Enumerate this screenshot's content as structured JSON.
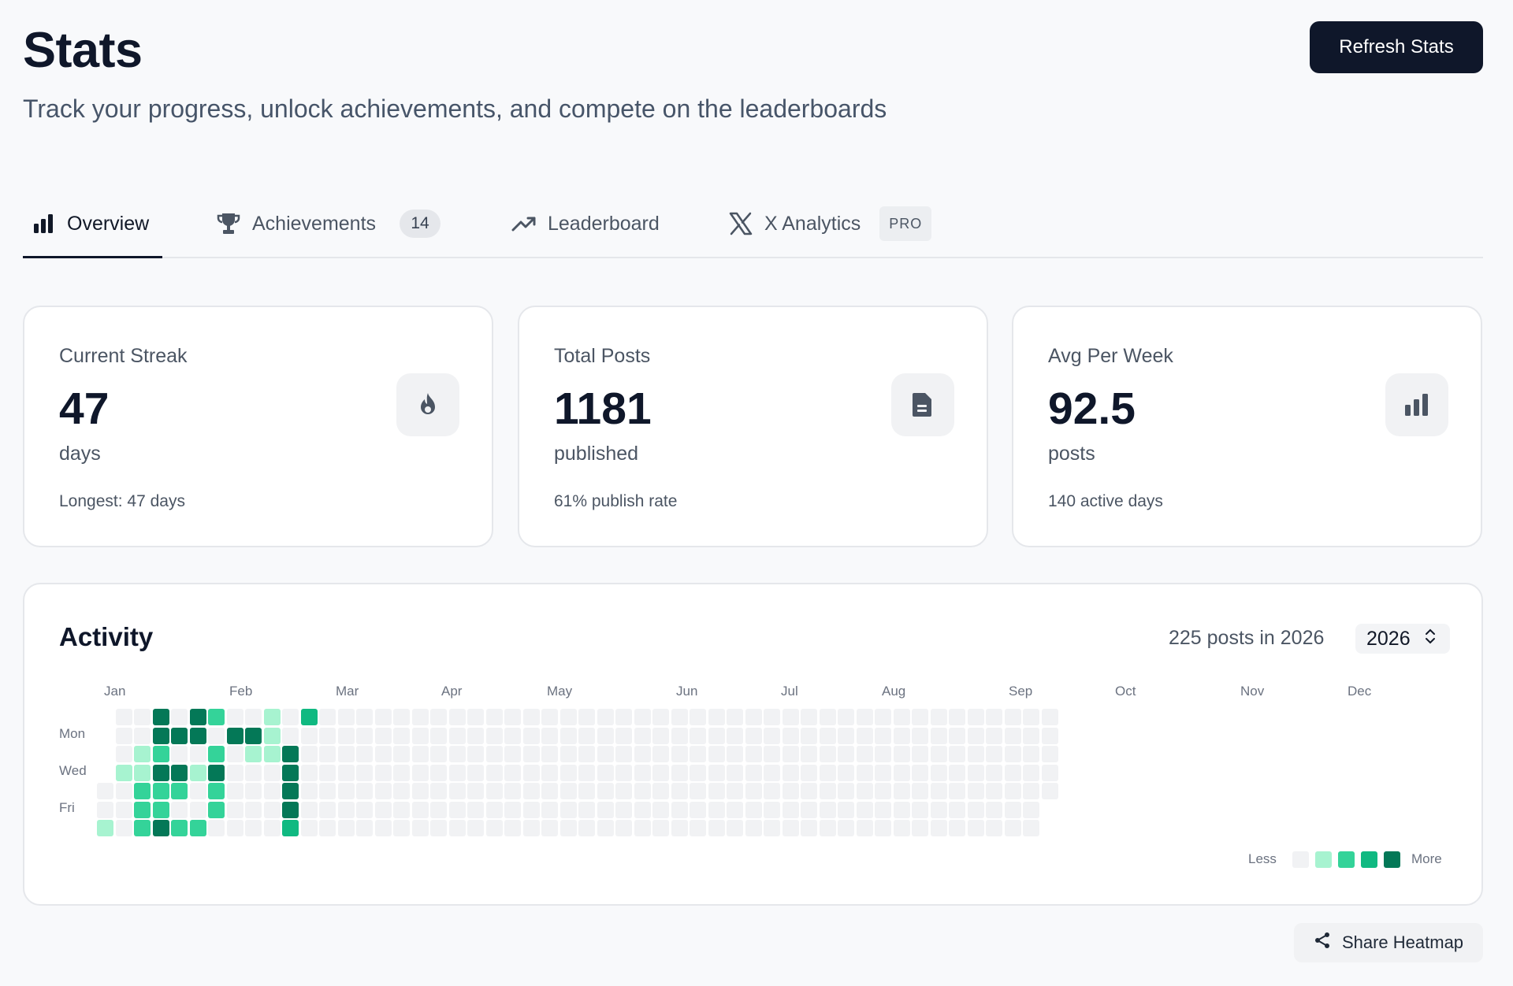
{
  "header": {
    "title": "Stats",
    "subtitle": "Track your progress, unlock achievements, and compete on the leaderboards",
    "refresh_label": "Refresh Stats"
  },
  "tabs": [
    {
      "label": "Overview",
      "icon": "bar-chart-icon",
      "active": true
    },
    {
      "label": "Achievements",
      "icon": "trophy-icon",
      "badge": "14"
    },
    {
      "label": "Leaderboard",
      "icon": "trending-up-icon"
    },
    {
      "label": "X Analytics",
      "icon": "x-logo-icon",
      "tag": "PRO"
    }
  ],
  "stats": [
    {
      "label": "Current Streak",
      "value": "47",
      "unit": "days",
      "footnote": "Longest: 47 days",
      "icon": "flame-icon"
    },
    {
      "label": "Total Posts",
      "value": "1181",
      "unit": "published",
      "footnote": "61% publish rate",
      "icon": "document-icon"
    },
    {
      "label": "Avg Per Week",
      "value": "92.5",
      "unit": "posts",
      "footnote": "140 active days",
      "icon": "bar-chart-icon"
    }
  ],
  "activity": {
    "title": "Activity",
    "summary": "225 posts in 2026",
    "year": "2026",
    "months": [
      "Jan",
      "Feb",
      "Mar",
      "Apr",
      "May",
      "Jun",
      "Jul",
      "Aug",
      "Sep",
      "Oct",
      "Nov",
      "Dec"
    ],
    "day_labels": [
      "Mon",
      "Wed",
      "Fri"
    ],
    "legend_less": "Less",
    "legend_more": "More",
    "levels": [
      "#f1f2f4",
      "#a7f3d0",
      "#34d399",
      "#10b981",
      "#047857"
    ],
    "weeks": [
      [
        null,
        null,
        null,
        null,
        0,
        0,
        1
      ],
      [
        0,
        0,
        0,
        1,
        0,
        0,
        0
      ],
      [
        0,
        0,
        1,
        1,
        2,
        2,
        2
      ],
      [
        4,
        4,
        2,
        4,
        2,
        2,
        4
      ],
      [
        0,
        4,
        0,
        4,
        2,
        0,
        2
      ],
      [
        4,
        4,
        0,
        1,
        0,
        0,
        2
      ],
      [
        2,
        0,
        2,
        4,
        2,
        2,
        0
      ],
      [
        0,
        4,
        0,
        0,
        0,
        0,
        0
      ],
      [
        0,
        4,
        1,
        0,
        0,
        0,
        0
      ],
      [
        1,
        1,
        1,
        0,
        0,
        0,
        0
      ],
      [
        0,
        0,
        4,
        4,
        4,
        4,
        3
      ],
      [
        3,
        0,
        0,
        0,
        0,
        0,
        0
      ],
      [
        0,
        0,
        0,
        0,
        0,
        0,
        0
      ],
      [
        0,
        0,
        0,
        0,
        0,
        0,
        0
      ],
      [
        0,
        0,
        0,
        0,
        0,
        0,
        0
      ],
      [
        0,
        0,
        0,
        0,
        0,
        0,
        0
      ],
      [
        0,
        0,
        0,
        0,
        0,
        0,
        0
      ],
      [
        0,
        0,
        0,
        0,
        0,
        0,
        0
      ],
      [
        0,
        0,
        0,
        0,
        0,
        0,
        0
      ],
      [
        0,
        0,
        0,
        0,
        0,
        0,
        0
      ],
      [
        0,
        0,
        0,
        0,
        0,
        0,
        0
      ],
      [
        0,
        0,
        0,
        0,
        0,
        0,
        0
      ],
      [
        0,
        0,
        0,
        0,
        0,
        0,
        0
      ],
      [
        0,
        0,
        0,
        0,
        0,
        0,
        0
      ],
      [
        0,
        0,
        0,
        0,
        0,
        0,
        0
      ],
      [
        0,
        0,
        0,
        0,
        0,
        0,
        0
      ],
      [
        0,
        0,
        0,
        0,
        0,
        0,
        0
      ],
      [
        0,
        0,
        0,
        0,
        0,
        0,
        0
      ],
      [
        0,
        0,
        0,
        0,
        0,
        0,
        0
      ],
      [
        0,
        0,
        0,
        0,
        0,
        0,
        0
      ],
      [
        0,
        0,
        0,
        0,
        0,
        0,
        0
      ],
      [
        0,
        0,
        0,
        0,
        0,
        0,
        0
      ],
      [
        0,
        0,
        0,
        0,
        0,
        0,
        0
      ],
      [
        0,
        0,
        0,
        0,
        0,
        0,
        0
      ],
      [
        0,
        0,
        0,
        0,
        0,
        0,
        0
      ],
      [
        0,
        0,
        0,
        0,
        0,
        0,
        0
      ],
      [
        0,
        0,
        0,
        0,
        0,
        0,
        0
      ],
      [
        0,
        0,
        0,
        0,
        0,
        0,
        0
      ],
      [
        0,
        0,
        0,
        0,
        0,
        0,
        0
      ],
      [
        0,
        0,
        0,
        0,
        0,
        0,
        0
      ],
      [
        0,
        0,
        0,
        0,
        0,
        0,
        0
      ],
      [
        0,
        0,
        0,
        0,
        0,
        0,
        0
      ],
      [
        0,
        0,
        0,
        0,
        0,
        0,
        0
      ],
      [
        0,
        0,
        0,
        0,
        0,
        0,
        0
      ],
      [
        0,
        0,
        0,
        0,
        0,
        0,
        0
      ],
      [
        0,
        0,
        0,
        0,
        0,
        0,
        0
      ],
      [
        0,
        0,
        0,
        0,
        0,
        0,
        0
      ],
      [
        0,
        0,
        0,
        0,
        0,
        0,
        0
      ],
      [
        0,
        0,
        0,
        0,
        0,
        0,
        0
      ],
      [
        0,
        0,
        0,
        0,
        0,
        0,
        0
      ],
      [
        0,
        0,
        0,
        0,
        0,
        0,
        0
      ],
      [
        0,
        0,
        0,
        0,
        0,
        null,
        null
      ]
    ]
  },
  "share_label": "Share Heatmap"
}
